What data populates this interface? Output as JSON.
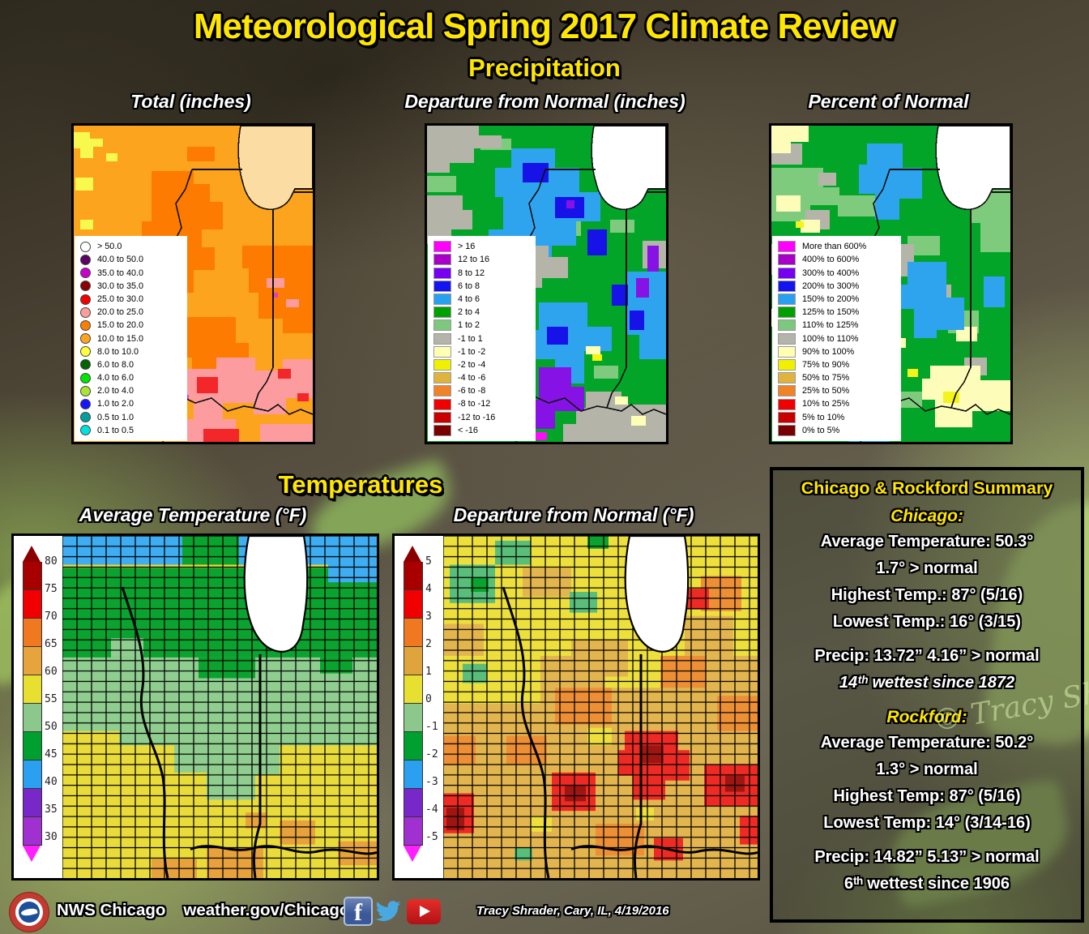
{
  "title": "Meteorological Spring 2017 Climate Review",
  "accent": {
    "heading_yellow": "#ffe600",
    "body_white": "#ffffff"
  },
  "precipitation": {
    "heading": "Precipitation",
    "maps": [
      {
        "title": "Total (inches)",
        "marker": "circle",
        "legend": [
          {
            "label": "> 50.0",
            "color": "#ffffff"
          },
          {
            "label": "40.0 to 50.0",
            "color": "#5c0066"
          },
          {
            "label": "35.0 to 40.0",
            "color": "#cc00cc"
          },
          {
            "label": "30.0 to 35.0",
            "color": "#8b0000"
          },
          {
            "label": "25.0 to 30.0",
            "color": "#f20000"
          },
          {
            "label": "20.0 to 25.0",
            "color": "#ff9c9c"
          },
          {
            "label": "15.0 to 20.0",
            "color": "#ff7d00"
          },
          {
            "label": "10.0 to 15.0",
            "color": "#ffa41e"
          },
          {
            "label": "8.0 to 10.0",
            "color": "#ffff3c"
          },
          {
            "label": "6.0 to 8.0",
            "color": "#006400"
          },
          {
            "label": "4.0 to 6.0",
            "color": "#00e600"
          },
          {
            "label": "2.0 to 4.0",
            "color": "#a8e632"
          },
          {
            "label": "1.0 to 2.0",
            "color": "#1414ff"
          },
          {
            "label": "0.5 to 1.0",
            "color": "#00a0a0"
          },
          {
            "label": "0.1 to 0.5",
            "color": "#00e0e0"
          }
        ]
      },
      {
        "title": "Departure from Normal (inches)",
        "marker": "rect",
        "legend": [
          {
            "label": "> 16",
            "color": "#ff00ff"
          },
          {
            "label": "12 to 16",
            "color": "#a800c8"
          },
          {
            "label": "8 to 12",
            "color": "#7800f0"
          },
          {
            "label": "6 to 8",
            "color": "#1414f0"
          },
          {
            "label": "4 to 6",
            "color": "#28a0f0"
          },
          {
            "label": "2 to 4",
            "color": "#00a000"
          },
          {
            "label": "1 to 2",
            "color": "#7cc87c"
          },
          {
            "label": "-1 to 1",
            "color": "#b4b4aa"
          },
          {
            "label": "-1 to -2",
            "color": "#ffffb4"
          },
          {
            "label": "-2 to -4",
            "color": "#f0f000"
          },
          {
            "label": "-4 to -6",
            "color": "#e0b43c"
          },
          {
            "label": "-6 to -8",
            "color": "#f08228"
          },
          {
            "label": "-8 to -12",
            "color": "#f00000"
          },
          {
            "label": "-12 to -16",
            "color": "#c80000"
          },
          {
            "label": "< -16",
            "color": "#780000"
          }
        ]
      },
      {
        "title": "Percent of Normal",
        "marker": "rect",
        "legend": [
          {
            "label": "More than 600%",
            "color": "#ff00ff"
          },
          {
            "label": "400% to 600%",
            "color": "#a800c8"
          },
          {
            "label": "300% to 400%",
            "color": "#7800f0"
          },
          {
            "label": "200% to 300%",
            "color": "#1414f0"
          },
          {
            "label": "150% to 200%",
            "color": "#28a0f0"
          },
          {
            "label": "125% to 150%",
            "color": "#00a000"
          },
          {
            "label": "110% to 125%",
            "color": "#7cc87c"
          },
          {
            "label": "100% to 110%",
            "color": "#b4b4aa"
          },
          {
            "label": "90% to 100%",
            "color": "#ffffb4"
          },
          {
            "label": "75% to 90%",
            "color": "#f0f000"
          },
          {
            "label": "50% to 75%",
            "color": "#e0b43c"
          },
          {
            "label": "25% to 50%",
            "color": "#f08228"
          },
          {
            "label": "10% to 25%",
            "color": "#f00000"
          },
          {
            "label": "5% to 10%",
            "color": "#c80000"
          },
          {
            "label": "0% to 5%",
            "color": "#780000"
          }
        ]
      }
    ]
  },
  "temperatures": {
    "heading": "Temperatures",
    "maps": [
      {
        "title": "Average Temperature (°F)",
        "scale": {
          "labels": [
            "80",
            "75",
            "70",
            "65",
            "60",
            "55",
            "50",
            "45",
            "40",
            "35",
            "30"
          ],
          "band_colors": [
            "#a80000",
            "#f00000",
            "#f07820",
            "#e8a43c",
            "#e8e030",
            "#8cc88c",
            "#00a030",
            "#2ca0f0",
            "#7828c8",
            "#a030d0"
          ],
          "arrow_top": "#8a0000",
          "arrow_bottom": "#ff20ff"
        }
      },
      {
        "title": "Departure from Normal (°F)",
        "scale": {
          "labels": [
            "5",
            "4",
            "3",
            "2",
            "1",
            "0",
            "-1",
            "-2",
            "-3",
            "-4",
            "-5"
          ],
          "band_colors": [
            "#a80000",
            "#f00000",
            "#f07820",
            "#e0a43c",
            "#e8e030",
            "#8cc88c",
            "#00a030",
            "#2ca0f0",
            "#7828c8",
            "#a030d0"
          ],
          "arrow_top": "#8a0000",
          "arrow_bottom": "#ff20ff"
        }
      }
    ]
  },
  "summary": {
    "title": "Chicago & Rockford Summary",
    "cities": [
      {
        "name": "Chicago:",
        "lines": [
          "Average Temperature: 50.3°",
          "1.7° > normal",
          "Highest Temp.: 87° (5/16)",
          "Lowest Temp.: 16° (3/15)"
        ],
        "precip_lines": [
          "Precip: 13.72”  4.16” > normal",
          "14ᵗʰ wettest since 1872"
        ]
      },
      {
        "name": "Rockford:",
        "lines": [
          "Average Temperature: 50.2°",
          "1.3° > normal",
          "Highest Temp: 87° (5/16)",
          "Lowest Temp: 14° (3/14-16)"
        ],
        "precip_lines": [
          "Precip: 14.82”  5.13” > normal",
          "6ᵗʰ wettest since 1906"
        ]
      }
    ]
  },
  "watermark": "© Tracy Sh",
  "footer": {
    "station": "NWS Chicago",
    "url": "weather.gov/Chicago",
    "credit": "Tracy Shrader,  Cary, IL, 4/19/2016",
    "social_icons": [
      "facebook",
      "twitter",
      "youtube"
    ]
  }
}
